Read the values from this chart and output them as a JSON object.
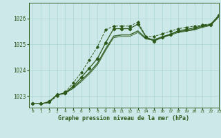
{
  "title": "Graphe pression niveau de la mer (hPa)",
  "bg_color": "#cce8e8",
  "grid_color": "#aad4d4",
  "line_color": "#2d5a1b",
  "xlim": [
    -0.5,
    23
  ],
  "ylim": [
    1022.55,
    1026.6
  ],
  "yticks": [
    1023,
    1024,
    1025,
    1026
  ],
  "xticks": [
    0,
    1,
    2,
    3,
    4,
    5,
    6,
    7,
    8,
    9,
    10,
    11,
    12,
    13,
    14,
    15,
    16,
    17,
    18,
    19,
    20,
    21,
    22,
    23
  ],
  "series_dotted": [
    1022.7,
    1022.7,
    1022.75,
    1023.0,
    1023.15,
    1023.5,
    1023.9,
    1024.4,
    1024.9,
    1025.55,
    1025.7,
    1025.7,
    1025.7,
    1025.85,
    1025.3,
    1025.3,
    1025.4,
    1025.5,
    1025.6,
    1025.65,
    1025.7,
    1025.75,
    1025.78,
    1026.1
  ],
  "series_thin1": [
    1022.7,
    1022.7,
    1022.75,
    1023.05,
    1023.1,
    1023.3,
    1023.55,
    1023.85,
    1024.2,
    1024.75,
    1025.25,
    1025.3,
    1025.3,
    1025.45,
    1025.2,
    1025.15,
    1025.25,
    1025.35,
    1025.45,
    1025.5,
    1025.55,
    1025.65,
    1025.72,
    1026.05
  ],
  "series_thin2": [
    1022.7,
    1022.7,
    1022.75,
    1023.05,
    1023.1,
    1023.3,
    1023.6,
    1023.9,
    1024.25,
    1024.8,
    1025.3,
    1025.35,
    1025.35,
    1025.5,
    1025.22,
    1025.17,
    1025.28,
    1025.38,
    1025.48,
    1025.52,
    1025.58,
    1025.68,
    1025.74,
    1026.08
  ],
  "series_thin3": [
    1022.7,
    1022.7,
    1022.75,
    1023.05,
    1023.1,
    1023.35,
    1023.62,
    1023.92,
    1024.28,
    1024.83,
    1025.32,
    1025.37,
    1025.37,
    1025.52,
    1025.24,
    1025.18,
    1025.29,
    1025.39,
    1025.49,
    1025.53,
    1025.59,
    1025.69,
    1025.75,
    1026.09
  ],
  "series_main": [
    1022.7,
    1022.7,
    1022.78,
    1023.05,
    1023.12,
    1023.38,
    1023.72,
    1024.08,
    1024.45,
    1025.05,
    1025.6,
    1025.6,
    1025.6,
    1025.78,
    1025.28,
    1025.12,
    1025.26,
    1025.38,
    1025.52,
    1025.57,
    1025.63,
    1025.72,
    1025.76,
    1026.12
  ]
}
